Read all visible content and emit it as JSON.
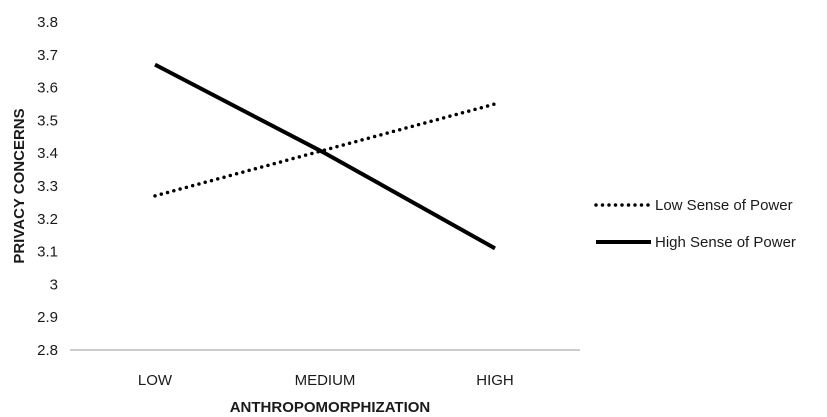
{
  "chart_data": {
    "type": "line",
    "categories": [
      "LOW",
      "MEDIUM",
      "HIGH"
    ],
    "series": [
      {
        "name": "Low Sense of Power",
        "values": [
          3.27,
          3.41,
          3.55
        ],
        "style": "dotted",
        "color": "#000000"
      },
      {
        "name": "High Sense of Power",
        "values": [
          3.67,
          3.4,
          3.11
        ],
        "style": "solid",
        "color": "#000000"
      }
    ],
    "xlabel": "ANTHROPOMORPHIZATION",
    "ylabel": "PRIVACY CONCERNS",
    "ylim": [
      2.8,
      3.8
    ],
    "yticks": [
      "2.8",
      "2.9",
      "3",
      "3.1",
      "3.2",
      "3.3",
      "3.4",
      "3.5",
      "3.6",
      "3.7",
      "3.8"
    ],
    "grid": false,
    "legend_position": "right"
  }
}
